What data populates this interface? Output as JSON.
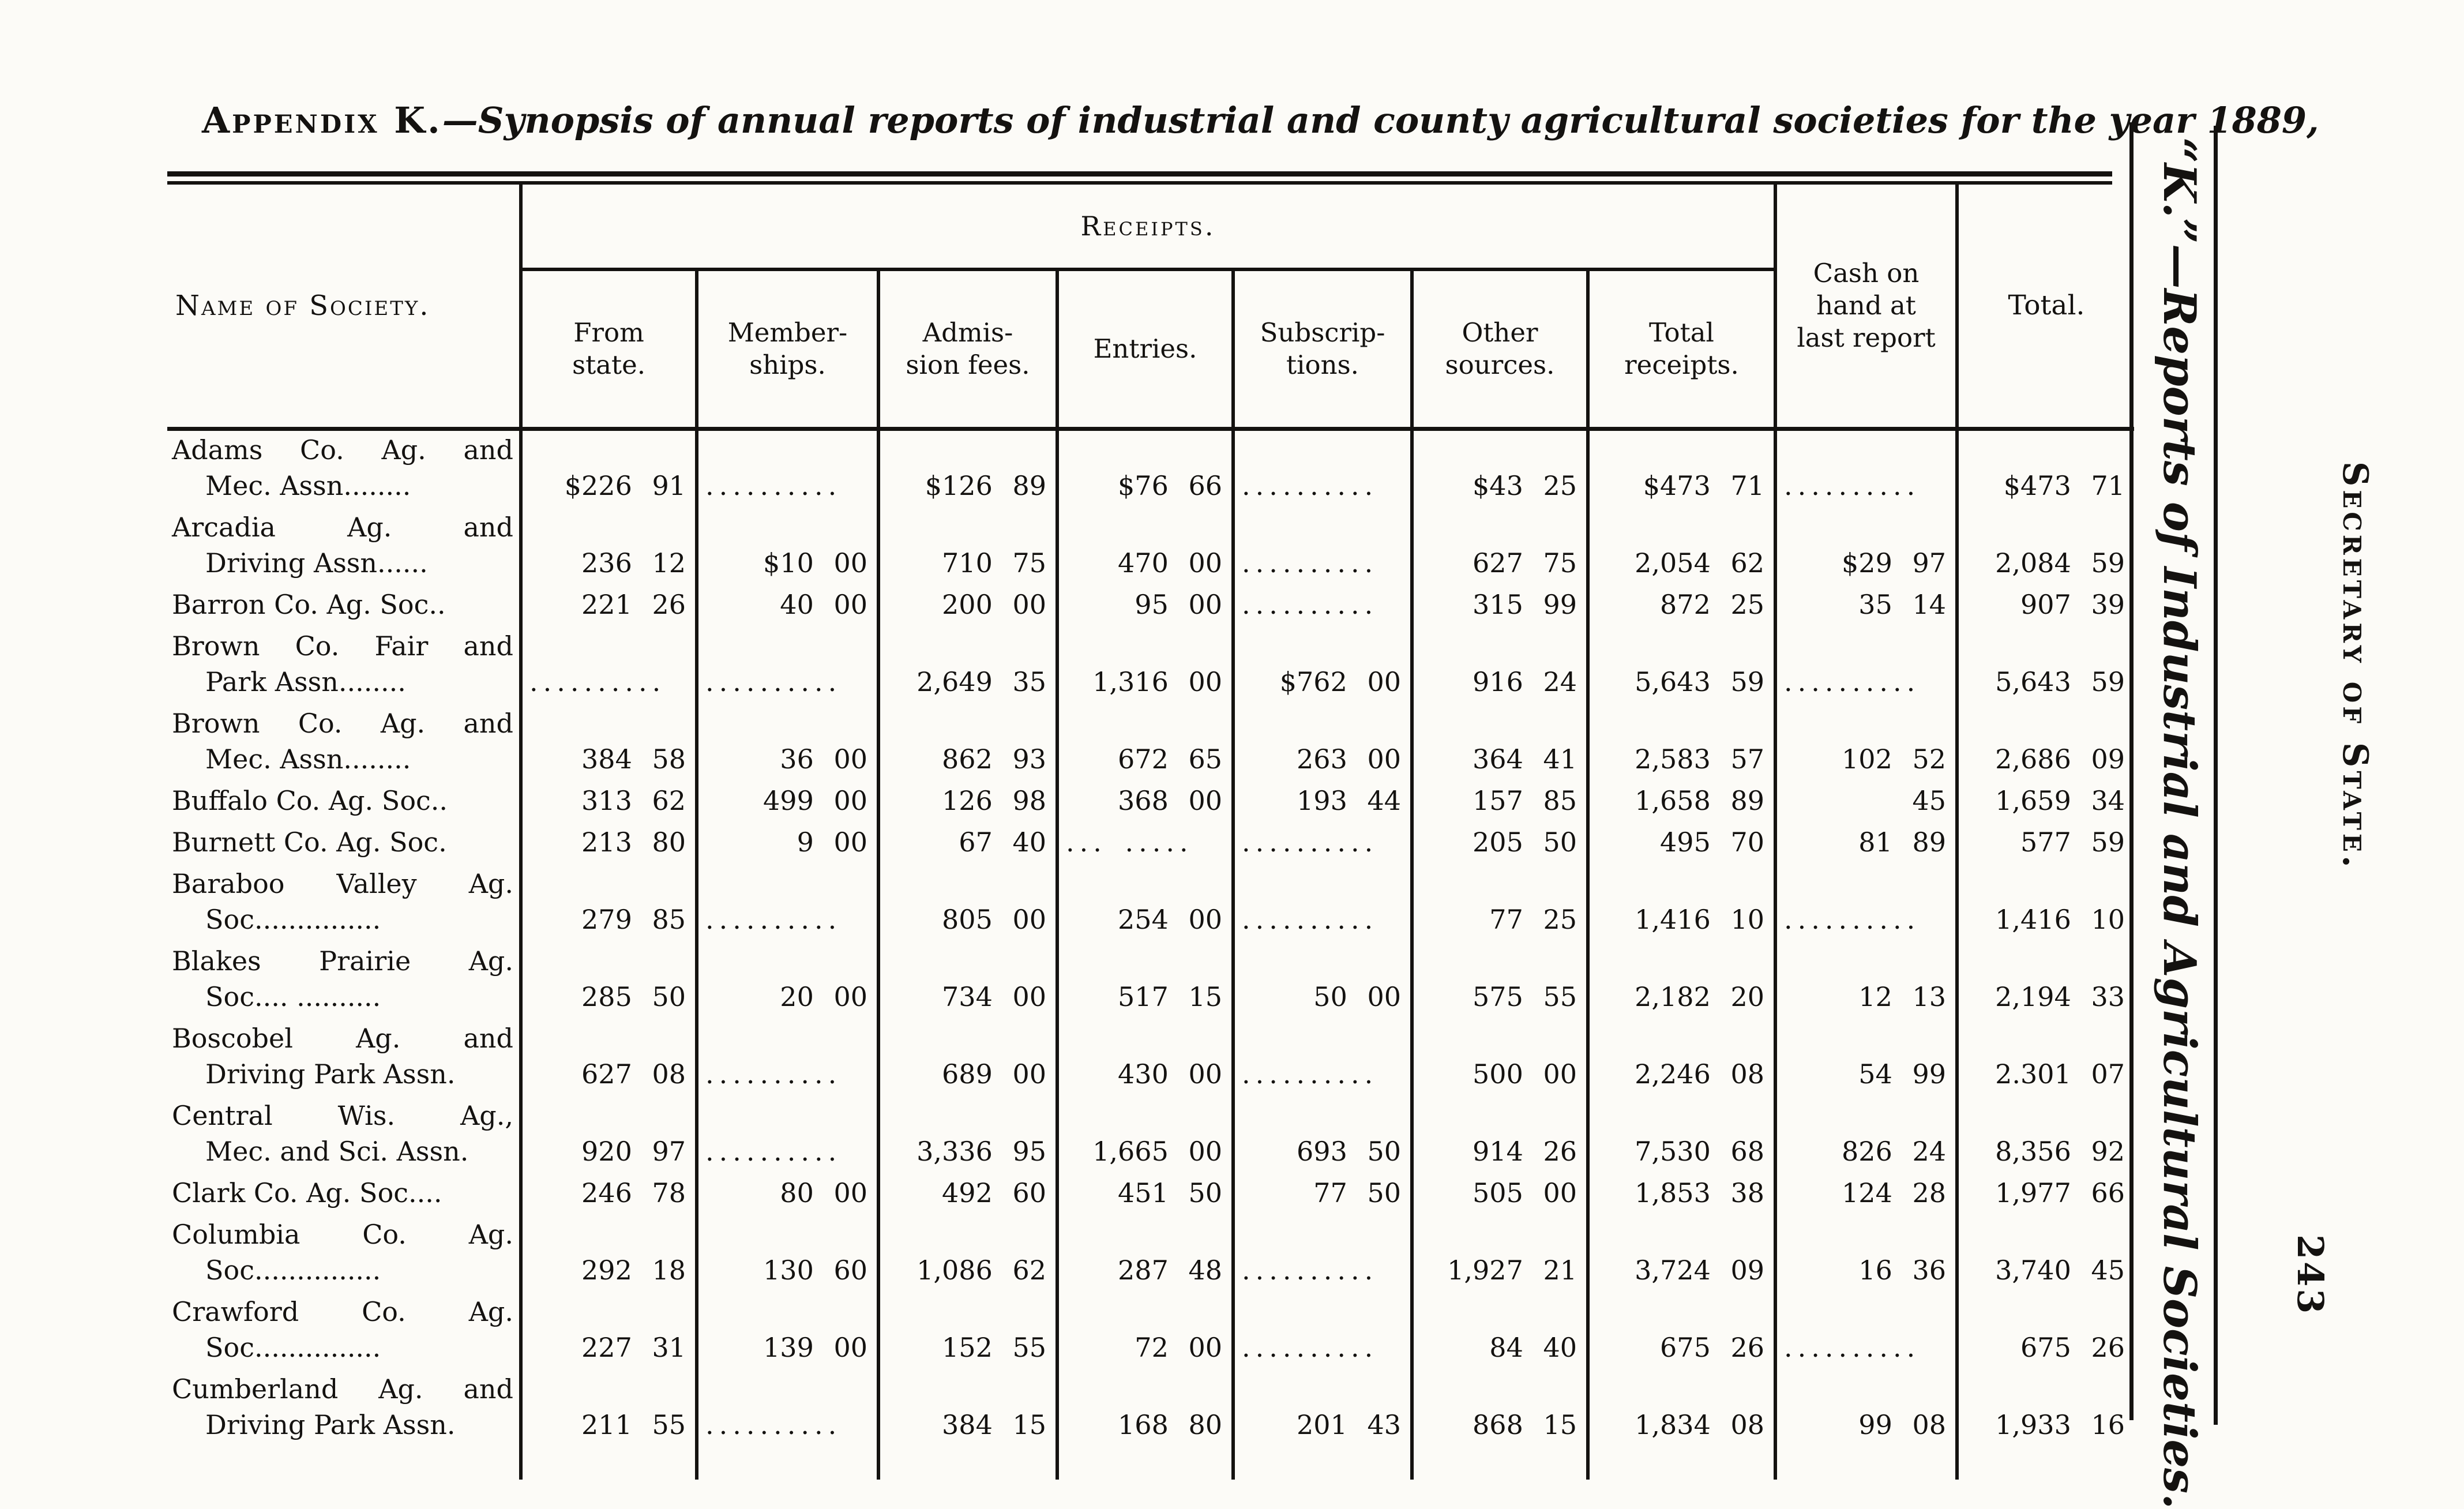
{
  "page": {
    "title_prefix": "Appendix K.",
    "title_rest": "—Synopsis of annual reports of industrial and county agricultural societies for the year 1889,",
    "side_caption_italic": "“K.”—Reports of Industrial and Agricultural Societies.",
    "side_caption_caps": "Secretary of State.",
    "page_number": "243"
  },
  "table": {
    "headers": {
      "name": "Name of Society.",
      "receipts": "Receipts.",
      "receipt_cols": [
        "From\nstate.",
        "Member-\nships.",
        "Admis-\nsion fees.",
        "Entries.",
        "Subscrip-\ntions.",
        "Other\nsources.",
        "Total\nreceipts."
      ],
      "cash": "Cash on\nhand at\nlast report",
      "total": "Total."
    },
    "rows": [
      {
        "name1": "Adams Co. Ag. and",
        "name2": "Mec. Assn........",
        "values": [
          "$226 91",
          "..........",
          "$126 89",
          "$76 66",
          "..........",
          "$43 25",
          "$473 71",
          "..........",
          "$473 71"
        ]
      },
      {
        "name1": "Arcadia Ag. and",
        "name2": "Driving Assn......",
        "values": [
          "236 12",
          "$10 00",
          "710 75",
          "470 00",
          "..........",
          "627 75",
          "2,054 62",
          "$29 97",
          "2,084 59"
        ]
      },
      {
        "name1": "Barron Co. Ag. Soc..",
        "name2": "",
        "values": [
          "221 26",
          "40 00",
          "200 00",
          "95 00",
          "..........",
          "315 99",
          "872 25",
          "35 14",
          "907 39"
        ]
      },
      {
        "name1": "Brown Co. Fair and",
        "name2": "Park Assn........",
        "values": [
          "..........",
          "..........",
          "2,649 35",
          "1,316 00",
          "$762 00",
          "916 24",
          "5,643 59",
          "..........",
          "5,643 59"
        ]
      },
      {
        "name1": "Brown Co. Ag. and",
        "name2": "Mec. Assn........",
        "values": [
          "384 58",
          "36 00",
          "862 93",
          "672 65",
          "263 00",
          "364 41",
          "2,583 57",
          "102 52",
          "2,686 09"
        ]
      },
      {
        "name1": "Buffalo Co. Ag. Soc..",
        "name2": "",
        "values": [
          "313 62",
          "499 00",
          "126 98",
          "368 00",
          "193 44",
          "157 85",
          "1,658 89",
          "45",
          "1,659 34"
        ]
      },
      {
        "name1": "Burnett Co. Ag. Soc.",
        "name2": "",
        "values": [
          "213 80",
          "9 00",
          "67 40",
          "... .....",
          "..........",
          "205 50",
          "495 70",
          "81 89",
          "577 59"
        ]
      },
      {
        "name1": "Baraboo Valley Ag.",
        "name2": "Soc...............",
        "values": [
          "279 85",
          "..........",
          "805 00",
          "254 00",
          "..........",
          "77 25",
          "1,416 10",
          "..........",
          "1,416 10"
        ]
      },
      {
        "name1": "Blakes Prairie Ag.",
        "name2": "Soc.... ..........",
        "values": [
          "285 50",
          "20 00",
          "734 00",
          "517 15",
          "50 00",
          "575 55",
          "2,182 20",
          "12 13",
          "2,194 33"
        ]
      },
      {
        "name1": "Boscobel Ag. and",
        "name2": "Driving Park Assn.",
        "values": [
          "627 08",
          "..........",
          "689 00",
          "430 00",
          "..........",
          "500 00",
          "2,246 08",
          "54 99",
          "2.301 07"
        ]
      },
      {
        "name1": "Central Wis. Ag.,",
        "name2": "Mec. and Sci. Assn.",
        "values": [
          "920 97",
          "..........",
          "3,336 95",
          "1,665 00",
          "693 50",
          "914 26",
          "7,530 68",
          "826 24",
          "8,356 92"
        ]
      },
      {
        "name1": "Clark Co. Ag. Soc....",
        "name2": "",
        "values": [
          "246 78",
          "80 00",
          "492 60",
          "451 50",
          "77 50",
          "505 00",
          "1,853 38",
          "124 28",
          "1,977 66"
        ]
      },
      {
        "name1": "Columbia Co. Ag.",
        "name2": "Soc...............",
        "values": [
          "292 18",
          "130 60",
          "1,086 62",
          "287 48",
          "..........",
          "1,927 21",
          "3,724 09",
          "16 36",
          "3,740 45"
        ]
      },
      {
        "name1": "Crawford Co. Ag.",
        "name2": "Soc...............",
        "values": [
          "227 31",
          "139 00",
          "152 55",
          "72 00",
          "..........",
          "84 40",
          "675 26",
          "..........",
          "675 26"
        ]
      },
      {
        "name1": "Cumberland Ag. and",
        "name2": "Driving Park Assn.",
        "values": [
          "211 55",
          "..........",
          "384 15",
          "168 80",
          "201 43",
          "868 15",
          "1,834 08",
          "99 08",
          "1,933 16"
        ]
      }
    ]
  }
}
